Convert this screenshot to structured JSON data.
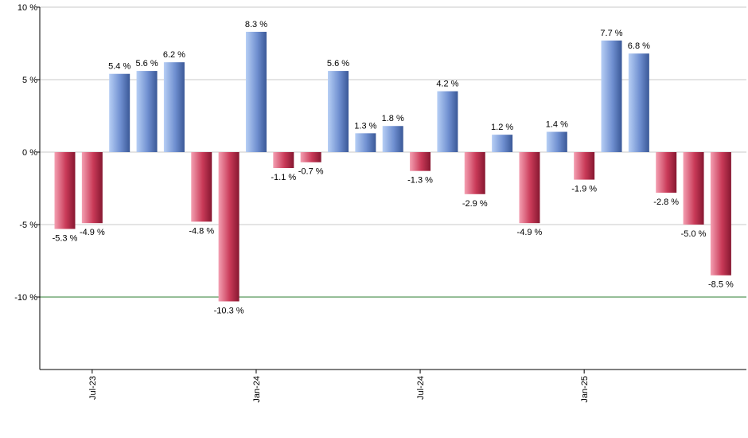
{
  "chart_data": {
    "type": "bar",
    "y_unit_suffix": " %",
    "ylim": [
      -15,
      10
    ],
    "yticks": [
      10,
      5,
      0,
      -5,
      -10
    ],
    "ytick_labels": [
      "10 %",
      "5 %",
      "0 %",
      "-5 %",
      "-10 %"
    ],
    "reference_line": -10,
    "grid": true,
    "values": [
      -5.3,
      -4.9,
      5.4,
      5.6,
      6.2,
      -4.8,
      -10.3,
      8.3,
      -1.1,
      -0.7,
      5.6,
      1.3,
      1.8,
      -1.3,
      4.2,
      -2.9,
      1.2,
      -4.9,
      1.4,
      -1.9,
      7.7,
      6.8,
      -2.8,
      -5.0,
      -8.5
    ],
    "data_labels": [
      "-5.3 %",
      "-4.9 %",
      "5.4 %",
      "5.6 %",
      "6.2 %",
      "-4.8 %",
      "-10.3 %",
      "8.3 %",
      "-1.1 %",
      "-0.7 %",
      "5.6 %",
      "1.3 %",
      "1.8 %",
      "-1.3 %",
      "4.2 %",
      "-2.9 %",
      "1.2 %",
      "-4.9 %",
      "1.4 %",
      "-1.9 %",
      "7.7 %",
      "6.8 %",
      "-2.8 %",
      "-5.0 %",
      "-8.5 %"
    ],
    "x_tick_labels": [
      {
        "label": "Jul-23",
        "bar_index": 1
      },
      {
        "label": "Jan-24",
        "bar_index": 7
      },
      {
        "label": "Jul-24",
        "bar_index": 13
      },
      {
        "label": "Jan-25",
        "bar_index": 19
      }
    ],
    "colors": {
      "positive_light": "#a9c4f2",
      "positive_dark": "#3f5f9e",
      "negative_light": "#f08aa0",
      "negative_dark": "#8e1a34",
      "grid": "#c8c8c8",
      "reference_line": "#2e7d32",
      "axis": "#000000"
    }
  }
}
